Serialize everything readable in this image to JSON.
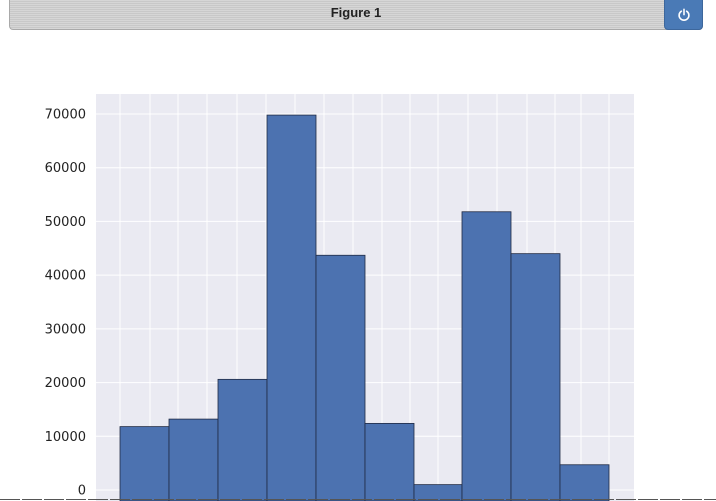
{
  "window": {
    "title": "Figure 1",
    "power_icon": "power-icon",
    "accent": "#4a7ab6"
  },
  "chart_data": {
    "type": "bar",
    "subtype": "histogram",
    "title": "",
    "xlabel": "",
    "ylabel": "",
    "ylim": [
      0,
      73000
    ],
    "yticks": [
      0,
      10000,
      20000,
      30000,
      40000,
      50000,
      60000,
      70000
    ],
    "grid": true,
    "background": "#eaeaf2",
    "bar_color": "#4c72b0",
    "values": [
      11800,
      13200,
      20600,
      69800,
      43700,
      12400,
      1000,
      51800,
      44000,
      4700
    ]
  }
}
